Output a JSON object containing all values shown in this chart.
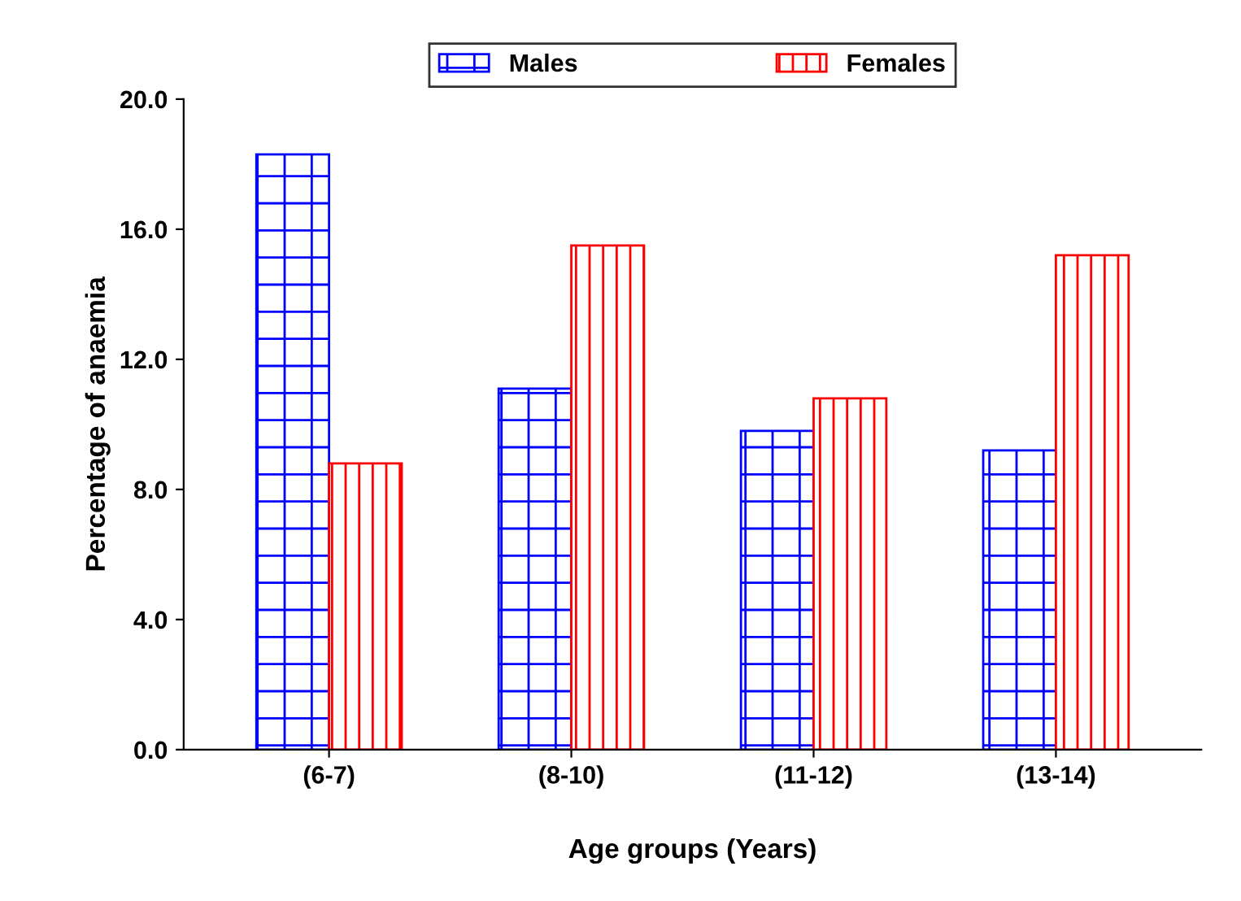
{
  "chart_data": {
    "type": "bar",
    "xlabel": "Age groups (Years)",
    "ylabel": "Percentage of anaemia",
    "categories": [
      "(6-7)",
      "(8-10)",
      "(11-12)",
      "(13-14)"
    ],
    "series": [
      {
        "name": "Males",
        "color": "#0000ff",
        "values": [
          18.3,
          11.1,
          9.8,
          9.2
        ]
      },
      {
        "name": "Females",
        "color": "#ff0000",
        "values": [
          8.8,
          15.5,
          10.8,
          15.2
        ]
      }
    ],
    "ylim": [
      0,
      20
    ],
    "yticks": [
      {
        "value": 0,
        "label": "0.0"
      },
      {
        "value": 4,
        "label": "4.0"
      },
      {
        "value": 8,
        "label": "8.0"
      },
      {
        "value": 12,
        "label": "12.0"
      },
      {
        "value": 16,
        "label": "16.0"
      },
      {
        "value": 20,
        "label": "20.0"
      }
    ],
    "grid": false,
    "legend": "top"
  }
}
